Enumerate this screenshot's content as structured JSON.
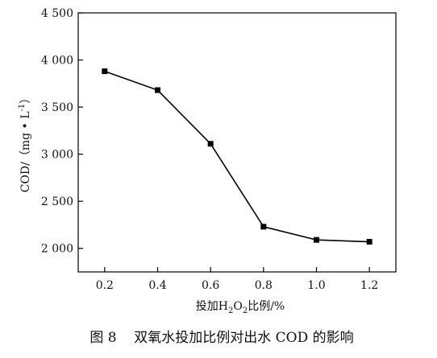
{
  "chart_data": {
    "type": "line",
    "x": [
      0.2,
      0.4,
      0.6,
      0.8,
      1.0,
      1.2
    ],
    "series": [
      {
        "values": [
          3880,
          3680,
          3110,
          2230,
          2090,
          2070
        ]
      }
    ],
    "xticks": [
      "0.2",
      "0.4",
      "0.6",
      "0.8",
      "1.0",
      "1.2"
    ],
    "yticks": [
      "2 000",
      "2 500",
      "3 000",
      "3 500",
      "4 000",
      "4 500"
    ],
    "ytick_values": [
      2000,
      2500,
      3000,
      3500,
      4000,
      4500
    ],
    "xlim": [
      0.1,
      1.3
    ],
    "ylim": [
      1750,
      4500
    ],
    "xlabel": {
      "main": "投加H",
      "sub1": "2",
      "mid": "O",
      "sub2": "2",
      "tail": "比例/%"
    },
    "ylabel": {
      "main": "COD/（mg • L",
      "sup": "-1",
      "tail": "）"
    },
    "caption": "图 8    双氧水投加比例对出水 COD 的影响",
    "line_color": "#000000",
    "marker": "square"
  }
}
